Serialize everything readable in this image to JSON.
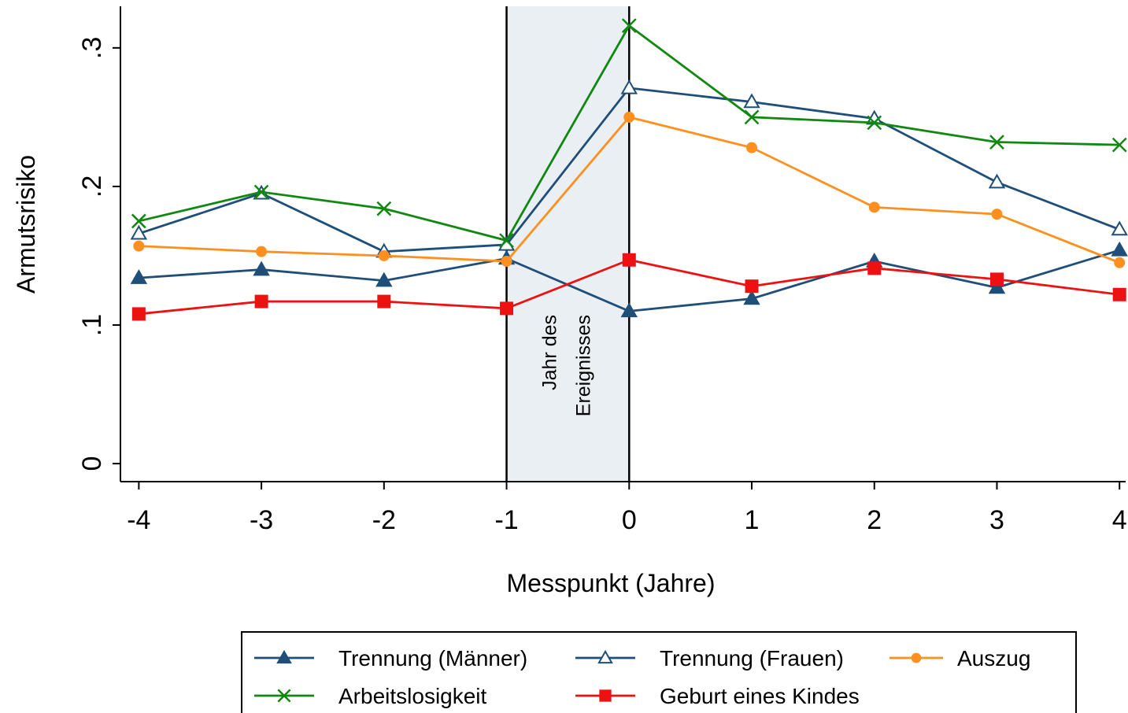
{
  "chart_data": {
    "type": "line",
    "xlabel": "Messpunkt (Jahre)",
    "ylabel": "Armutsrisiko",
    "x": [
      -4,
      -3,
      -2,
      -1,
      0,
      1,
      2,
      3,
      4
    ],
    "x_tick_labels": [
      "-4",
      "-3",
      "-2",
      "-1",
      "0",
      "1",
      "2",
      "3",
      "4"
    ],
    "xlim": [
      -4.15,
      4.05
    ],
    "y_ticks": [
      0,
      0.1,
      0.2,
      0.3
    ],
    "y_tick_labels": [
      "0",
      ".1",
      ".2",
      ".3"
    ],
    "ylim": [
      -0.013,
      0.33
    ],
    "grid": false,
    "legend_placement": "bottom",
    "annotation": {
      "lines": [
        "Jahr des",
        "Ereignisses"
      ],
      "x_range": [
        -1,
        0
      ],
      "color": "#e9eff2"
    },
    "series": [
      {
        "name": "Trennung (Männer)",
        "values": [
          0.134,
          0.14,
          0.132,
          0.148,
          0.11,
          0.119,
          0.146,
          0.127,
          0.154
        ],
        "color": "#1f4e79",
        "marker": "triangle-filled"
      },
      {
        "name": "Trennung (Frauen)",
        "values": [
          0.166,
          0.195,
          0.153,
          0.158,
          0.271,
          0.261,
          0.249,
          0.203,
          0.169
        ],
        "color": "#1f4e79",
        "marker": "triangle-open"
      },
      {
        "name": "Auszug",
        "values": [
          0.157,
          0.153,
          0.15,
          0.146,
          0.25,
          0.228,
          0.185,
          0.18,
          0.145
        ],
        "color": "#ff9020",
        "marker": "circle"
      },
      {
        "name": "Arbeitslosigkeit",
        "values": [
          0.175,
          0.196,
          0.184,
          0.161,
          0.316,
          0.25,
          0.246,
          0.232,
          0.23
        ],
        "color": "#118811",
        "marker": "x"
      },
      {
        "name": "Geburt eines Kindes",
        "values": [
          0.108,
          0.117,
          0.117,
          0.112,
          0.147,
          0.128,
          0.141,
          0.133,
          0.122
        ],
        "color": "#ee1111",
        "marker": "square"
      }
    ]
  }
}
